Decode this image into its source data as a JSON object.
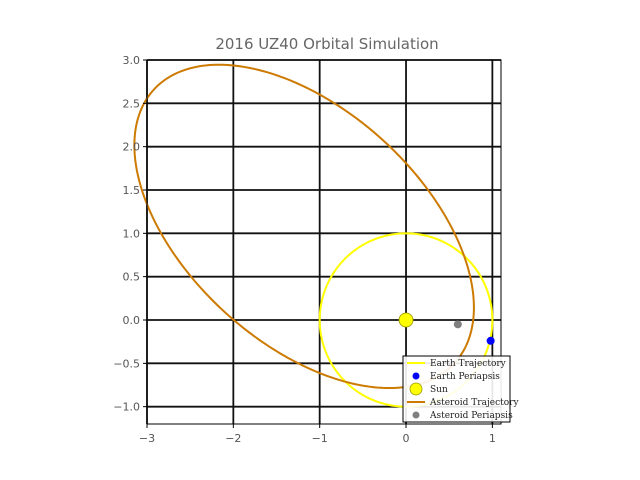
{
  "chart_data": {
    "type": "line",
    "title": "2016 UZ40 Orbital Simulation",
    "xlabel": "",
    "ylabel": "",
    "xlim": [
      -3,
      1.1
    ],
    "ylim": [
      -1.2,
      3.0
    ],
    "grid": true,
    "x_ticks": [
      -3,
      -2,
      -1,
      0,
      1
    ],
    "x_tick_labels": [
      "−3",
      "−2",
      "−1",
      "0",
      "1"
    ],
    "y_ticks": [
      -1.0,
      -0.5,
      0.0,
      0.5,
      1.0,
      1.5,
      2.0,
      2.5,
      3.0
    ],
    "y_tick_labels": [
      "−1.0",
      "−0.5",
      "0.0",
      "0.5",
      "1.0",
      "1.5",
      "2.0",
      "2.5",
      "3.0"
    ],
    "legend_position": "lower-right",
    "series": [
      {
        "name": "Earth Trajectory",
        "kind": "ellipse",
        "center": [
          0,
          0
        ],
        "semi_axes": [
          1.0,
          1.0
        ],
        "rotation_deg": 0,
        "color": "#ffff00"
      },
      {
        "name": "Earth Periapsis",
        "kind": "point",
        "x": 0.98,
        "y": -0.24,
        "color": "#0000ff"
      },
      {
        "name": "Sun",
        "kind": "point",
        "x": 0.0,
        "y": 0.0,
        "color": "#ffff00"
      },
      {
        "name": "Asteroid Trajectory",
        "kind": "ellipse",
        "center": [
          -1.18,
          1.08
        ],
        "semi_axes": [
          2.35,
          1.35
        ],
        "rotation_deg": -42,
        "color": "#cc7a00"
      },
      {
        "name": "Asteroid Periapsis",
        "kind": "point",
        "x": 0.6,
        "y": -0.05,
        "color": "#808080"
      }
    ]
  }
}
